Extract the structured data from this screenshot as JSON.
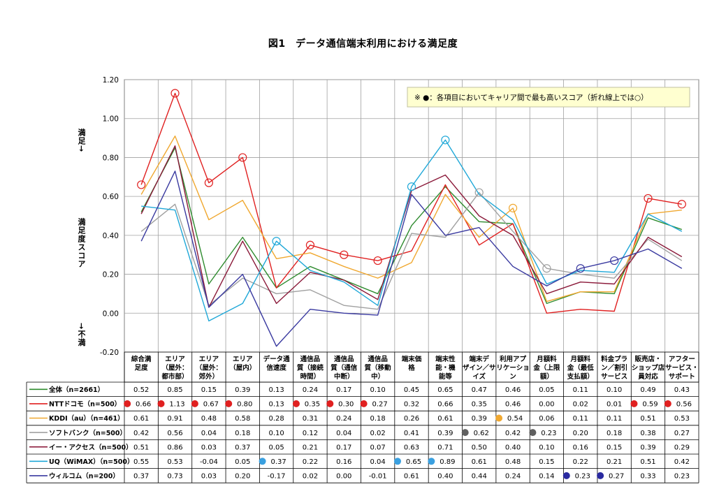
{
  "chart_data": {
    "type": "line",
    "title": "図1　データ通信端末利用における満足度",
    "ylim": [
      -0.2,
      1.2
    ],
    "yticks": [
      "1.20",
      "1.00",
      "0.80",
      "0.60",
      "0.40",
      "0.20",
      "0.00",
      "-0.20"
    ],
    "ylabel_top": "満足→",
    "ylabel_mid": "満足度スコア",
    "ylabel_bottom": "→不満",
    "note": "※ ●：各項目においてキャリア間で最も高いスコア（折れ線上では○）",
    "grid": true,
    "categories": [
      [
        "綜合満",
        "足度"
      ],
      [
        "エリア",
        "（屋外：",
        "都市部）"
      ],
      [
        "エリア",
        "（屋外：",
        "郊外）"
      ],
      [
        "エリア",
        "（屋内）"
      ],
      [
        "データ通",
        "信速度"
      ],
      [
        "通信品",
        "質（接続",
        "時間）"
      ],
      [
        "通信品",
        "質（通信",
        "中断）"
      ],
      [
        "通信品",
        "質（移動",
        "中）"
      ],
      [
        "端末価",
        "格"
      ],
      [
        "端末性",
        "能・機",
        "能等"
      ],
      [
        "端末デ",
        "ザイン／サ",
        "イズ"
      ],
      [
        "利用アプ",
        "リケーショ",
        "ン"
      ],
      [
        "月額料",
        "金（上限",
        "額）"
      ],
      [
        "月額料",
        "金（最低",
        "支払額）"
      ],
      [
        "料金プラ",
        "ン／割引",
        "サービス"
      ],
      [
        "販売店・",
        "ショップ店",
        "員対応"
      ],
      [
        "アフター",
        "サービス・",
        "サポート"
      ]
    ],
    "series": [
      {
        "name": "全体（n=2661）",
        "color": "#2e8b2e",
        "values": [
          "0.52",
          "0.85",
          "0.15",
          "0.39",
          "0.13",
          "0.24",
          "0.17",
          "0.10",
          "0.45",
          "0.65",
          "0.47",
          "0.46",
          "0.05",
          "0.11",
          "0.10",
          "0.49",
          "0.43"
        ],
        "best": []
      },
      {
        "name": "NTTドコモ（n=500）",
        "color": "#e02020",
        "dot": "#e02020",
        "values": [
          "0.66",
          "1.13",
          "0.67",
          "0.80",
          "0.13",
          "0.35",
          "0.30",
          "0.27",
          "0.32",
          "0.66",
          "0.35",
          "0.46",
          "0.00",
          "0.02",
          "0.01",
          "0.59",
          "0.56"
        ],
        "best": [
          0,
          1,
          2,
          3,
          5,
          6,
          7,
          15,
          16
        ]
      },
      {
        "name": "KDDI（au）（n=461）",
        "color": "#f0a830",
        "dot": "#f0a830",
        "values": [
          "0.61",
          "0.91",
          "0.48",
          "0.58",
          "0.28",
          "0.31",
          "0.24",
          "0.18",
          "0.26",
          "0.61",
          "0.39",
          "0.54",
          "0.06",
          "0.11",
          "0.11",
          "0.51",
          "0.53"
        ],
        "best": [
          11
        ]
      },
      {
        "name": "ソフトバンク（n=500）",
        "color": "#a0a0a0",
        "dot": "#606060",
        "values": [
          "0.42",
          "0.56",
          "0.04",
          "0.18",
          "0.10",
          "0.12",
          "0.04",
          "0.02",
          "0.41",
          "0.39",
          "0.62",
          "0.42",
          "0.23",
          "0.20",
          "0.18",
          "0.38",
          "0.27"
        ],
        "best": [
          10,
          12
        ]
      },
      {
        "name": "イー・アクセス（n=500）",
        "color": "#8b1a3a",
        "dot": "#8b1a3a",
        "values": [
          "0.51",
          "0.86",
          "0.03",
          "0.37",
          "0.05",
          "0.21",
          "0.17",
          "0.07",
          "0.63",
          "0.71",
          "0.50",
          "0.40",
          "0.10",
          "0.16",
          "0.15",
          "0.39",
          "0.29"
        ],
        "best": []
      },
      {
        "name": "UQ（WiMAX）（n=500）",
        "color": "#20a8d8",
        "dot": "#3aa0e0",
        "values": [
          "0.55",
          "0.53",
          "-0.04",
          "0.05",
          "0.37",
          "0.22",
          "0.16",
          "0.04",
          "0.65",
          "0.89",
          "0.61",
          "0.48",
          "0.15",
          "0.22",
          "0.21",
          "0.51",
          "0.42"
        ],
        "best": [
          4,
          8,
          9
        ]
      },
      {
        "name": "ウィルコム（n=200）",
        "color": "#3a3aa0",
        "dot": "#2a2aa0",
        "values": [
          "0.37",
          "0.73",
          "0.03",
          "0.20",
          "-0.17",
          "0.02",
          "0.00",
          "-0.01",
          "0.61",
          "0.40",
          "0.44",
          "0.24",
          "0.14",
          "0.23",
          "0.27",
          "0.33",
          "0.23"
        ],
        "best": [
          13,
          14
        ]
      }
    ]
  }
}
